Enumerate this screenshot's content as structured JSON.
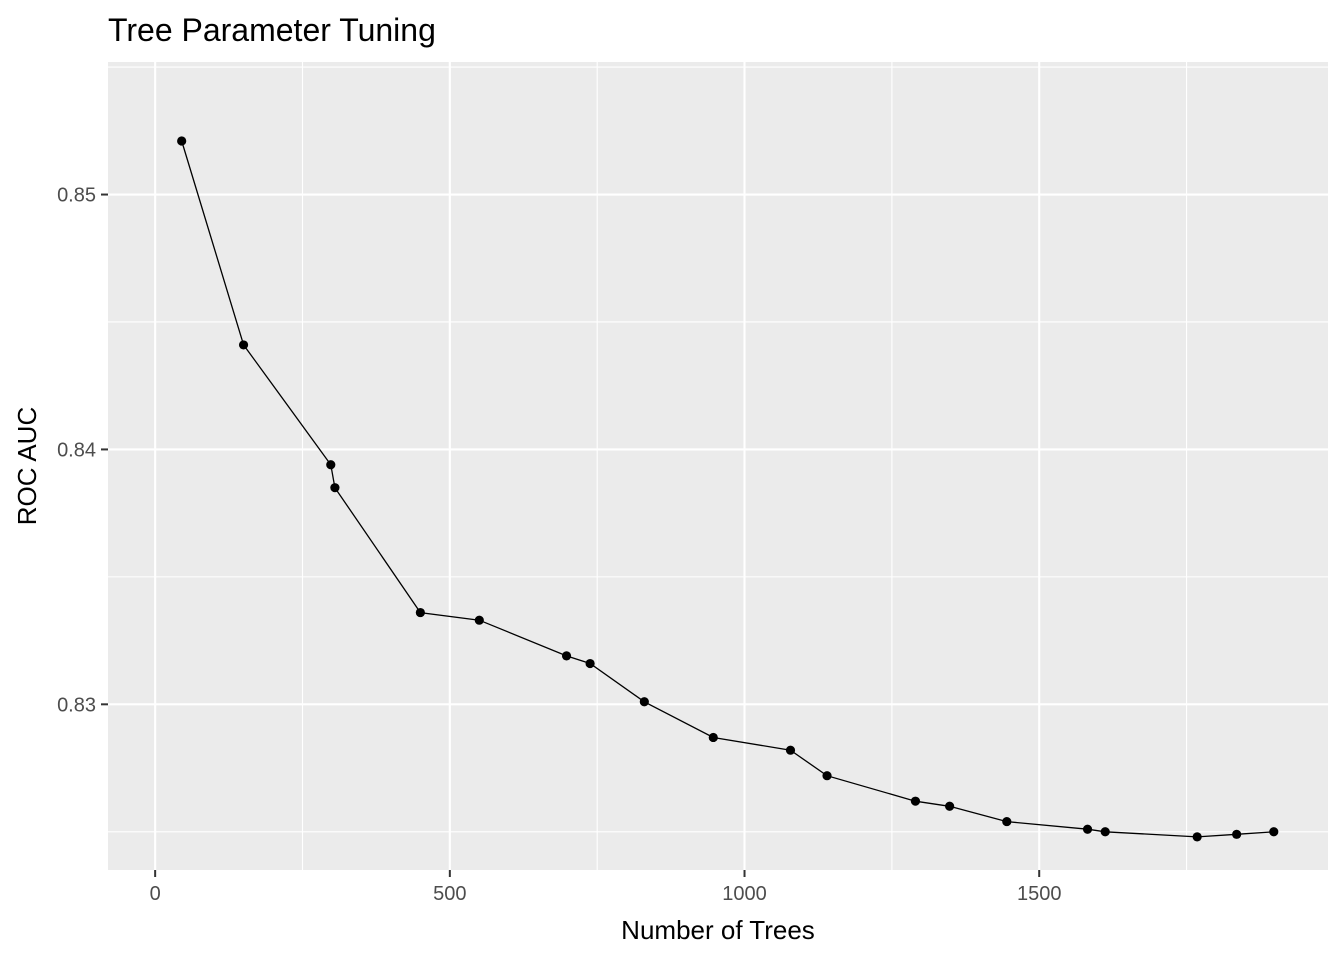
{
  "chart_data": {
    "type": "line",
    "title": "Tree Parameter Tuning",
    "xlabel": "Number of Trees",
    "ylabel": "ROC AUC",
    "xlim": [
      -80,
      1990
    ],
    "ylim": [
      0.8235,
      0.8552
    ],
    "x_ticks": [
      0,
      500,
      1000,
      1500
    ],
    "x_tick_labels": [
      "0",
      "500",
      "1000",
      "1500"
    ],
    "y_ticks": [
      0.83,
      0.84,
      0.85
    ],
    "y_tick_labels": [
      "0.83",
      "0.84",
      "0.85"
    ],
    "grid": true,
    "legend": "none",
    "series": [
      {
        "x": [
          45,
          150,
          298,
          305,
          450,
          550,
          698,
          738,
          830,
          947,
          1078,
          1140,
          1290,
          1348,
          1445,
          1582,
          1612,
          1768,
          1835,
          1898
        ],
        "y": [
          0.8521,
          0.8441,
          0.8394,
          0.8385,
          0.8336,
          0.8333,
          0.8319,
          0.8316,
          0.8301,
          0.8287,
          0.8282,
          0.8272,
          0.8262,
          0.826,
          0.8254,
          0.8251,
          0.825,
          0.8248,
          0.8249,
          0.825
        ]
      }
    ]
  }
}
